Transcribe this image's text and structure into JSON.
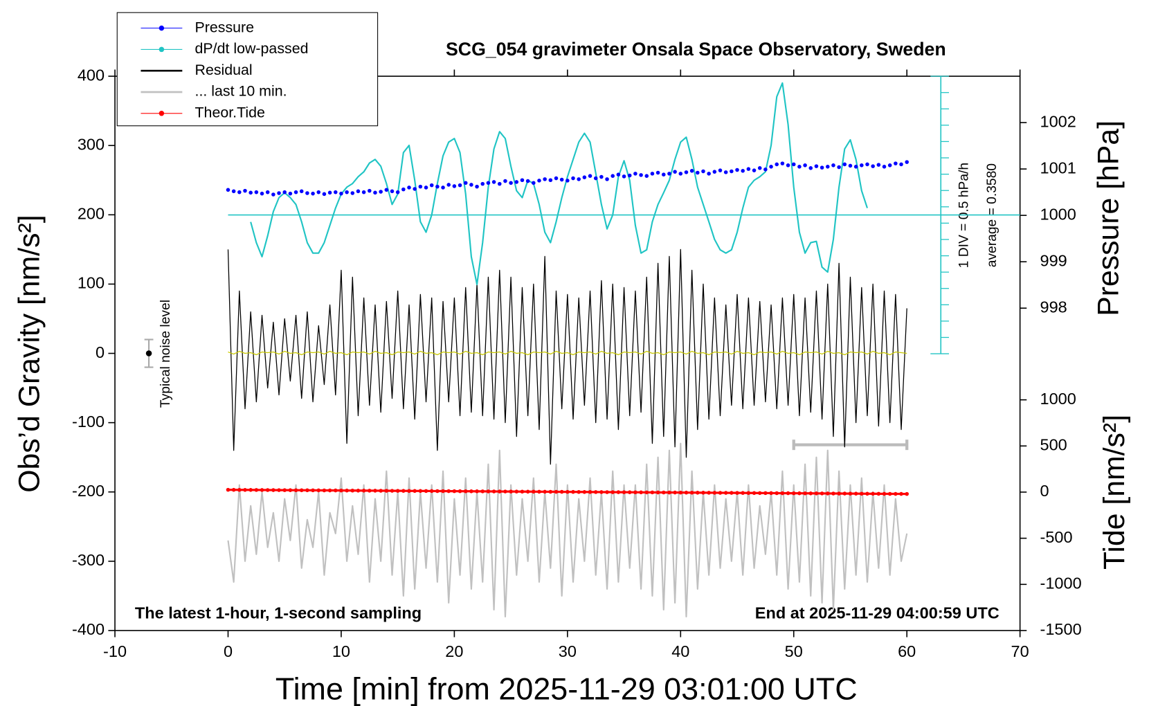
{
  "chart_data": {
    "type": "line",
    "title": "SCG_054 gravimeter Onsala Space Observatory, Sweden",
    "xlabel": "Time [min] from 2025-11-29 03:01:00 UTC",
    "ylabel": "Obs’d Gravity [nm/s²]",
    "y2label": "Pressure [hPa]",
    "y3label": "Tide [nm/s²]",
    "xlim": [
      -10,
      70
    ],
    "xticks": [
      -10,
      0,
      10,
      20,
      30,
      40,
      50,
      60,
      70
    ],
    "ylim": [
      -400,
      400
    ],
    "yticks": [
      -400,
      -300,
      -200,
      -100,
      0,
      100,
      200,
      300,
      400
    ],
    "y2lim": [
      991.05,
      1003.0
    ],
    "y2ticks": [
      998,
      999,
      1000,
      1001,
      1002
    ],
    "y3lim": [
      -1500,
      4507
    ],
    "y3ticks": [
      -1500,
      -1000,
      -500,
      0,
      500,
      1000
    ],
    "y4lim": [
      -3.892,
      4.608
    ],
    "y4ticks": [
      -3.892,
      -3.392,
      -2.892,
      -2.392,
      -1.892,
      -1.392,
      -0.892,
      -0.392,
      0.108,
      0.608,
      1.108,
      1.608,
      2.108,
      2.608,
      3.108,
      3.608,
      4.108,
      4.608
    ],
    "y4ref": 0.358,
    "legend": "upper left",
    "annotations": [
      "The latest 1-hour, 1-second sampling",
      "End at 2025-11-29 04:00:59 UTC",
      "Typical noise level",
      "1 DIV = 0.5 hPa/h",
      "average = 0.3580"
    ],
    "noise": {
      "x": -7,
      "value": 0,
      "error": 20
    },
    "last_window": {
      "x": [
        50,
        60
      ],
      "value": -132
    },
    "x": [
      0,
      0.5,
      1,
      1.5,
      2,
      2.5,
      3,
      3.5,
      4,
      4.5,
      5,
      5.5,
      6,
      6.5,
      7,
      7.5,
      8,
      8.5,
      9,
      9.5,
      10,
      10.5,
      11,
      11.5,
      12,
      12.5,
      13,
      13.5,
      14,
      14.5,
      15,
      15.5,
      16,
      16.5,
      17,
      17.5,
      18,
      18.5,
      19,
      19.5,
      20,
      20.5,
      21,
      21.5,
      22,
      22.5,
      23,
      23.5,
      24,
      24.5,
      25,
      25.5,
      26,
      26.5,
      27,
      27.5,
      28,
      28.5,
      29,
      29.5,
      30,
      30.5,
      31,
      31.5,
      32,
      32.5,
      33,
      33.5,
      34,
      34.5,
      35,
      35.5,
      36,
      36.5,
      37,
      37.5,
      38,
      38.5,
      39,
      39.5,
      40,
      40.5,
      41,
      41.5,
      42,
      42.5,
      43,
      43.5,
      44,
      44.5,
      45,
      45.5,
      46,
      46.5,
      47,
      47.5,
      48,
      48.5,
      49,
      49.5,
      50,
      50.5,
      51,
      51.5,
      52,
      52.5,
      53,
      53.5,
      54,
      54.5,
      55,
      55.5,
      56,
      56.5,
      57,
      57.5,
      58,
      58.5,
      59,
      59.5,
      60
    ],
    "series": [
      {
        "name": "Pressure",
        "color": "#0000ff",
        "axis": "y2",
        "style": "markers",
        "values": [
          1000.55,
          1000.52,
          1000.5,
          1000.53,
          1000.49,
          1000.5,
          1000.47,
          1000.5,
          1000.45,
          1000.48,
          1000.5,
          1000.47,
          1000.5,
          1000.52,
          1000.48,
          1000.47,
          1000.5,
          1000.46,
          1000.49,
          1000.5,
          1000.47,
          1000.5,
          1000.48,
          1000.52,
          1000.5,
          1000.53,
          1000.49,
          1000.51,
          1000.55,
          1000.52,
          1000.5,
          1000.56,
          1000.6,
          1000.57,
          1000.62,
          1000.6,
          1000.65,
          1000.62,
          1000.6,
          1000.66,
          1000.63,
          1000.65,
          1000.7,
          1000.66,
          1000.62,
          1000.68,
          1000.7,
          1000.72,
          1000.68,
          1000.74,
          1000.7,
          1000.72,
          1000.76,
          1000.74,
          1000.7,
          1000.75,
          1000.78,
          1000.76,
          1000.8,
          1000.77,
          1000.75,
          1000.8,
          1000.78,
          1000.82,
          1000.85,
          1000.8,
          1000.83,
          1000.78,
          1000.85,
          1000.88,
          1000.84,
          1000.86,
          1000.9,
          1000.87,
          1000.85,
          1000.9,
          1000.92,
          1000.88,
          1000.9,
          1000.94,
          1000.9,
          1000.93,
          1000.96,
          1000.92,
          1000.95,
          1000.9,
          1000.94,
          1000.97,
          1000.93,
          1000.95,
          1000.98,
          1000.96,
          1001,
          1000.97,
          1001.02,
          1000.99,
          1001.05,
          1001.1,
          1001.12,
          1001.08,
          1001.1,
          1001.05,
          1001.08,
          1001.02,
          1001.06,
          1001.03,
          1001.05,
          1001.08,
          1001.04,
          1001.1,
          1001.07,
          1001.05,
          1001.08,
          1001.1,
          1001.06,
          1001.09,
          1001.05,
          1001.08,
          1001.12,
          1001.1,
          1001.15
        ]
      },
      {
        "name": "dP/dt low-passed",
        "color": "#20c4c4",
        "axis": "y4",
        "style": "line",
        "values": [
          null,
          null,
          null,
          null,
          0.145,
          -0.49,
          -0.92,
          -0.28,
          0.46,
          0.89,
          1.04,
          0.89,
          0.68,
          0.15,
          -0.49,
          -0.81,
          -0.81,
          -0.49,
          0.04,
          0.57,
          1.0,
          1.21,
          1.32,
          1.53,
          1.68,
          1.95,
          2.06,
          1.85,
          1.32,
          0.68,
          1.0,
          2.27,
          2.49,
          1.42,
          0.15,
          -0.17,
          0.36,
          1.32,
          2.17,
          2.59,
          2.7,
          2.27,
          1.0,
          -0.92,
          -1.77,
          -0.49,
          1.21,
          2.38,
          2.91,
          2.7,
          1.85,
          1.1,
          0.89,
          1.42,
          1.32,
          0.68,
          -0.17,
          -0.49,
          0.15,
          0.89,
          1.53,
          2.06,
          2.59,
          2.86,
          2.59,
          1.64,
          0.68,
          -0.07,
          0.36,
          1.53,
          2.02,
          1.42,
          0.04,
          -0.81,
          -0.71,
          0.15,
          0.68,
          1.04,
          1.42,
          2.06,
          2.59,
          2.74,
          2.06,
          1.21,
          0.68,
          0.15,
          -0.39,
          -0.71,
          -0.81,
          -0.71,
          -0.17,
          0.57,
          1.21,
          1.42,
          1.53,
          1.68,
          2.49,
          3.98,
          4.4,
          3.13,
          1.21,
          -0.17,
          -0.81,
          -0.49,
          -0.45,
          -1.24,
          -1.39,
          -0.39,
          1.21,
          2.38,
          2.66,
          2.06,
          1.1,
          0.57,
          null,
          null,
          null,
          null,
          null,
          null,
          null
        ]
      },
      {
        "name": "Residual",
        "color": "#000000",
        "axis": "y",
        "style": "line",
        "values": [
          150,
          -140,
          90,
          -80,
          60,
          -70,
          55,
          -50,
          45,
          -60,
          50,
          -40,
          55,
          -65,
          60,
          -70,
          40,
          -45,
          70,
          -60,
          120,
          -130,
          110,
          -90,
          80,
          -75,
          70,
          -85,
          75,
          -65,
          90,
          -80,
          70,
          -95,
          85,
          -70,
          80,
          -140,
          75,
          -70,
          80,
          -90,
          95,
          -85,
          100,
          -90,
          110,
          -95,
          120,
          -100,
          110,
          -120,
          95,
          -90,
          100,
          -110,
          140,
          -160,
          90,
          -80,
          85,
          -95,
          80,
          -75,
          90,
          -100,
          105,
          -95,
          100,
          -110,
          95,
          -90,
          90,
          -85,
          110,
          -130,
          130,
          -120,
          140,
          -135,
          150,
          -150,
          120,
          -110,
          100,
          -95,
          80,
          -90,
          70,
          -75,
          85,
          -80,
          80,
          -75,
          75,
          -70,
          70,
          -80,
          80,
          -75,
          85,
          -90,
          80,
          -85,
          90,
          -95,
          100,
          -120,
          130,
          -135,
          110,
          -100,
          95,
          -90,
          100,
          -105,
          90,
          -100,
          85,
          -110,
          65
        ]
      },
      {
        "name": "... last 10 min.",
        "color": "#c0c0c0",
        "axis": "y",
        "style": "line",
        "values": [
          -270,
          -330,
          -190,
          -300,
          -220,
          -290,
          -200,
          -280,
          -230,
          -300,
          -210,
          -270,
          -190,
          -310,
          -240,
          -280,
          -200,
          -320,
          -230,
          -260,
          -180,
          -300,
          -220,
          -290,
          -190,
          -330,
          -210,
          -300,
          -170,
          -320,
          -200,
          -350,
          -180,
          -340,
          -200,
          -310,
          -190,
          -330,
          -170,
          -360,
          -210,
          -320,
          -180,
          -340,
          -200,
          -330,
          -160,
          -370,
          -140,
          -380,
          -190,
          -320,
          -210,
          -300,
          -180,
          -330,
          -200,
          -310,
          -160,
          -350,
          -190,
          -330,
          -210,
          -300,
          -180,
          -320,
          -200,
          -340,
          -170,
          -330,
          -190,
          -310,
          -190,
          -340,
          -160,
          -350,
          -150,
          -370,
          -140,
          -360,
          -130,
          -380,
          -170,
          -340,
          -200,
          -320,
          -190,
          -310,
          -210,
          -300,
          -200,
          -320,
          -190,
          -310,
          -220,
          -290,
          -200,
          -320,
          -170,
          -340,
          -190,
          -330,
          -160,
          -350,
          -150,
          -360,
          -140,
          -370,
          -170,
          -340,
          -190,
          -320,
          -180,
          -330,
          -200,
          -310,
          -190,
          -320,
          -210,
          -300,
          -260
        ]
      },
      {
        "name": "Theor.Tide",
        "color": "#ff0000",
        "axis": "y3",
        "style": "line+markers",
        "values": [
          25,
          24.6,
          24.3,
          23.9,
          23.5,
          23.1,
          22.8,
          22.4,
          22,
          21.6,
          21.3,
          20.9,
          20.5,
          20.1,
          19.8,
          19.4,
          19,
          18.6,
          18.3,
          17.9,
          17.5,
          17.1,
          16.8,
          16.4,
          16,
          15.6,
          15.3,
          14.9,
          14.5,
          14.1,
          13.8,
          13.4,
          13,
          12.6,
          12.3,
          11.9,
          11.5,
          11.1,
          10.8,
          10.4,
          10,
          9.6,
          9.3,
          8.9,
          8.5,
          8.1,
          7.8,
          7.4,
          7,
          6.6,
          6.3,
          5.9,
          5.5,
          5.1,
          4.8,
          4.4,
          4,
          3.6,
          3.3,
          2.9,
          2.5,
          2.1,
          1.8,
          1.4,
          1,
          0.6,
          0.3,
          -0.1,
          -0.5,
          -0.9,
          -1.3,
          -1.6,
          -2,
          -2.4,
          -2.8,
          -3.1,
          -3.5,
          -3.9,
          -4.3,
          -4.6,
          -5,
          -5.4,
          -5.8,
          -6.1,
          -6.5,
          -6.9,
          -7.3,
          -7.6,
          -8,
          -8.4,
          -8.8,
          -9.1,
          -9.5,
          -9.9,
          -10.3,
          -10.6,
          -11,
          -11.4,
          -11.8,
          -12.1,
          -12.5,
          -12.9,
          -13.3,
          -13.6,
          -14,
          -14.4,
          -14.8,
          -15.1,
          -15.5,
          -15.9,
          -16.3,
          -16.6,
          -17,
          -17.4,
          -17.8,
          -18.1,
          -18.5,
          -18.9,
          -19.3,
          -19.6,
          -20
        ]
      },
      {
        "color": "#c8c800",
        "axis": "y",
        "style": "line",
        "values": [
          2,
          -1,
          3,
          0,
          1,
          -2,
          2,
          1,
          2,
          -1,
          3,
          0,
          1,
          -2,
          2,
          1,
          2,
          -1,
          3,
          0,
          1,
          -2,
          2,
          1,
          2,
          -1,
          3,
          0,
          1,
          -2,
          2,
          1,
          2,
          -1,
          3,
          0,
          1,
          -2,
          2,
          1,
          2,
          -1,
          3,
          0,
          1,
          -2,
          2,
          1,
          2,
          -1,
          3,
          0,
          1,
          -2,
          2,
          1,
          2,
          -1,
          3,
          0,
          1,
          -2,
          2,
          1,
          2,
          -1,
          3,
          0,
          1,
          -2,
          2,
          1,
          2,
          -1,
          3,
          0,
          1,
          -2,
          2,
          1,
          2,
          -1,
          3,
          0,
          1,
          -2,
          2,
          1,
          2,
          -1,
          3,
          0,
          1,
          -2,
          2,
          1,
          2,
          -1,
          3,
          0,
          1,
          -2,
          2,
          1,
          2,
          -1,
          3,
          0,
          1,
          -2,
          2,
          1,
          2,
          -1,
          3,
          0,
          1,
          -2,
          2,
          1,
          0
        ]
      }
    ]
  }
}
